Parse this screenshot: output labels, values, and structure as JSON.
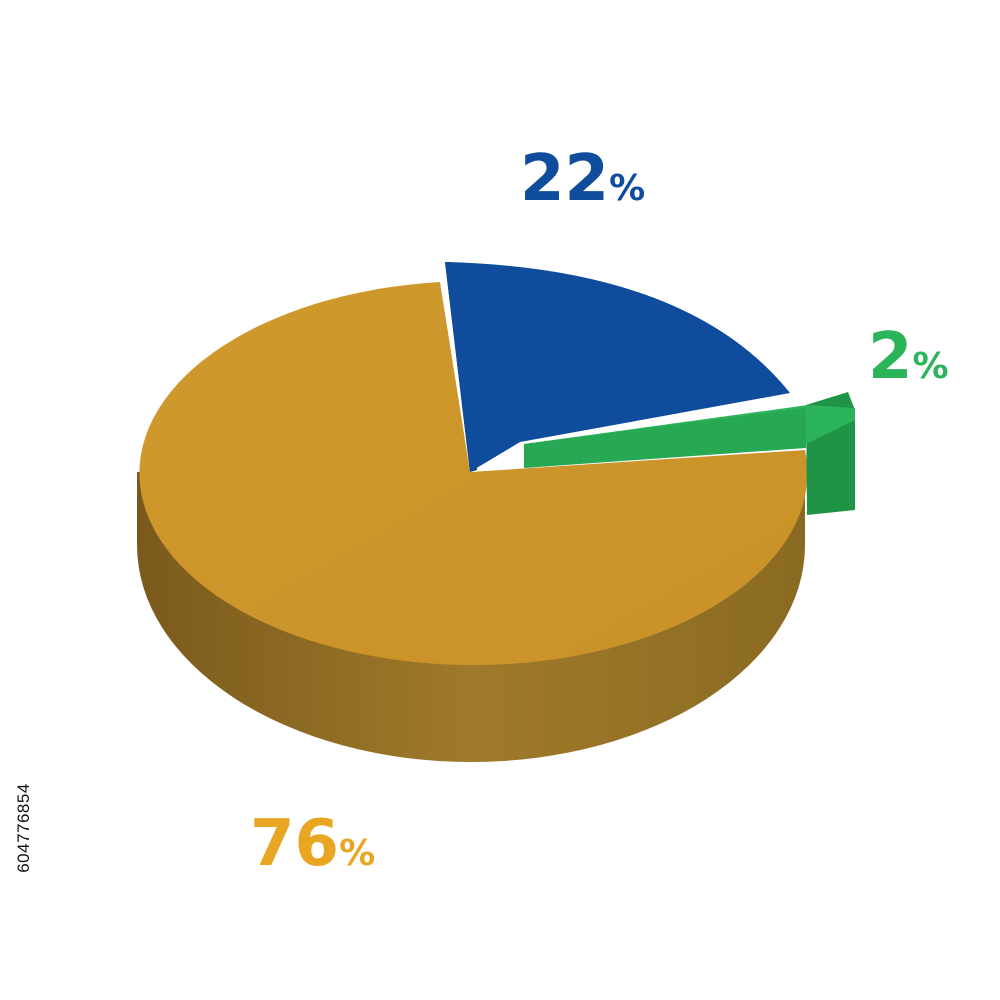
{
  "chart_data": {
    "type": "pie",
    "style": "3d",
    "title": "",
    "slices": [
      {
        "value": 22,
        "label": "22",
        "unit": "%",
        "color": "#0f4c9c",
        "side_color": "#0a3878",
        "exploded": false
      },
      {
        "value": 2,
        "label": "2",
        "unit": "%",
        "color": "#2bb45a",
        "side_color": "#1f9446",
        "exploded": true
      },
      {
        "value": 76,
        "label": "76",
        "unit": "%",
        "color": "#cc962c",
        "side_color": "#8c6a22",
        "exploded": false
      }
    ]
  },
  "side_id": "604776854"
}
